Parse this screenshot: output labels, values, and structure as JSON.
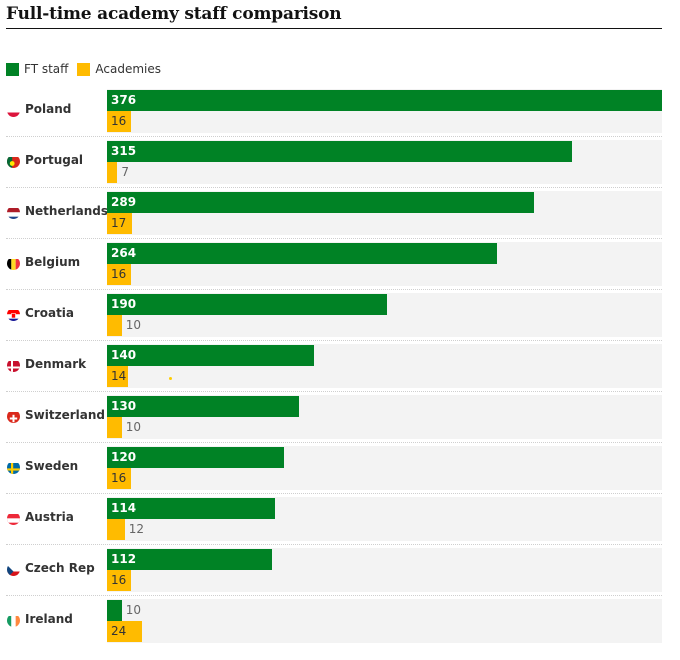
{
  "colors": {
    "ft_staff": "#008225",
    "academies": "#ffbb00",
    "row_bg": "#f3f3f3"
  },
  "chart_data": {
    "type": "bar",
    "orientation": "horizontal",
    "title": "Full-time academy staff comparison",
    "legend_position": "top-left",
    "categories": [
      "Poland",
      "Portugal",
      "Netherlands",
      "Belgium",
      "Croatia",
      "Denmark",
      "Switzerland",
      "Sweden",
      "Austria",
      "Czech Rep",
      "Ireland"
    ],
    "flags": [
      "flag-poland-icon",
      "flag-portugal-icon",
      "flag-netherlands-icon",
      "flag-belgium-icon",
      "flag-croatia-icon",
      "flag-denmark-icon",
      "flag-switzerland-icon",
      "flag-sweden-icon",
      "flag-austria-icon",
      "flag-czech-republic-icon",
      "flag-ireland-icon"
    ],
    "series": [
      {
        "name": "FT staff",
        "values": [
          376,
          315,
          289,
          264,
          190,
          140,
          130,
          120,
          114,
          112,
          10
        ]
      },
      {
        "name": "Academies",
        "values": [
          16,
          7,
          17,
          16,
          10,
          14,
          10,
          16,
          12,
          16,
          24
        ]
      }
    ],
    "xlim": [
      0,
      376
    ]
  }
}
